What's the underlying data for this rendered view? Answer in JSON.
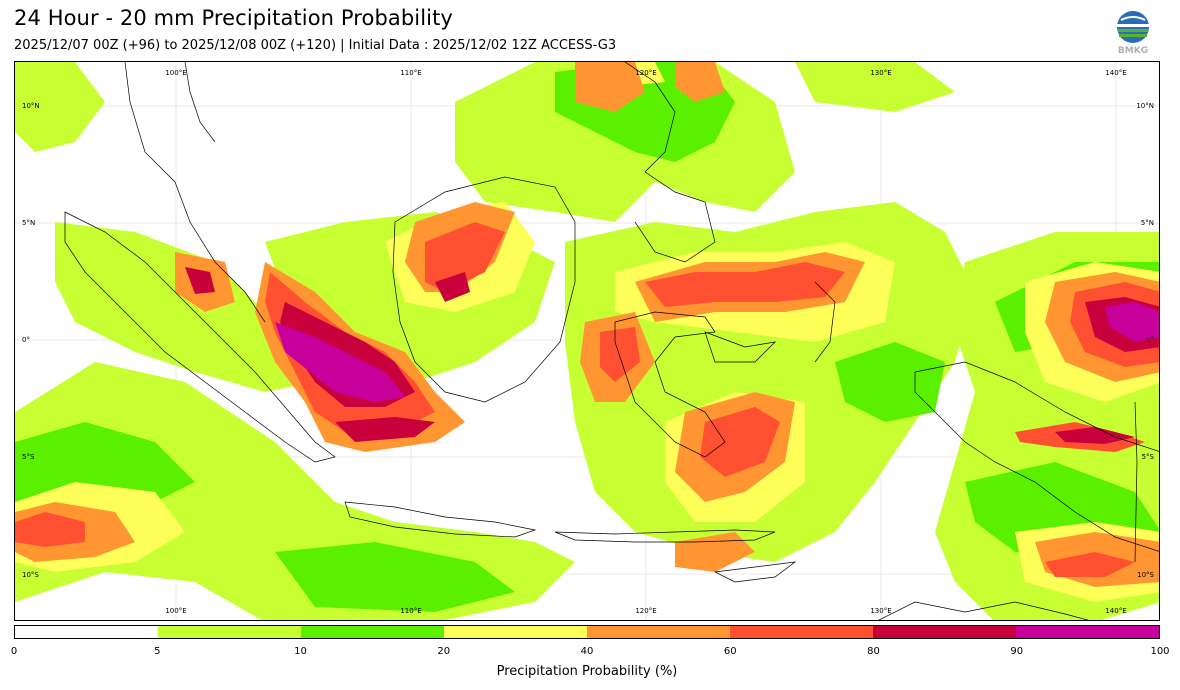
{
  "header": {
    "title": "24 Hour - 20 mm Precipitation Probability",
    "subtitle": "2025/12/07 00Z (+96) to 2025/12/08 00Z (+120) | Initial Data : 2025/12/02 12Z ACCESS-G3",
    "logo_text": "BMKG"
  },
  "map": {
    "region": "Indonesia",
    "lon_labels": [
      "100°E",
      "110°E",
      "120°E",
      "130°E",
      "140°E"
    ],
    "lat_labels": [
      "10°N",
      "5°N",
      "0°",
      "5°S",
      "10°S"
    ]
  },
  "colorbar": {
    "label": "Precipitation Probability (%)",
    "ticks": [
      "0",
      "5",
      "10",
      "20",
      "40",
      "60",
      "80",
      "90",
      "100"
    ],
    "colors": [
      "#ffffff",
      "#c8ff32",
      "#5af000",
      "#ffff5a",
      "#ff9632",
      "#ff5032",
      "#c8003c",
      "#c8009b"
    ]
  }
}
